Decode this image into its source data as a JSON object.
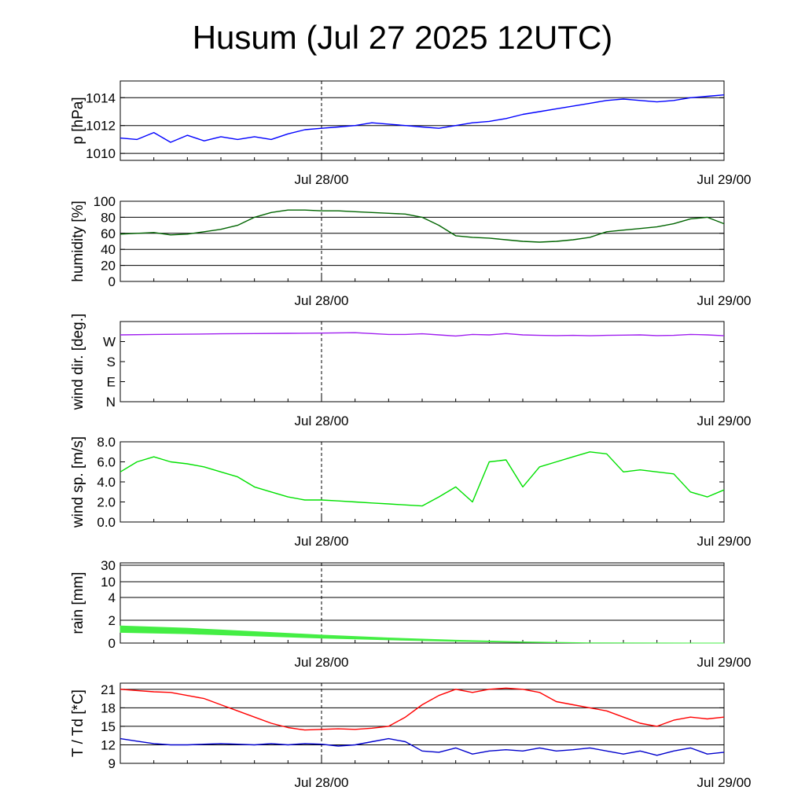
{
  "title": "Husum (Jul 27 2025 12UTC)",
  "chart_data": [
    {
      "id": "pressure",
      "type": "line",
      "ylabel": "p [hPa]",
      "x": [
        "Jul 27 12UTC",
        "Jul 29/00"
      ],
      "xticks": [
        "Jul 28/00",
        "Jul 29/00"
      ],
      "ylim": [
        1009.5,
        1015.2
      ],
      "yticks": [
        "1010",
        "1012",
        "1014"
      ],
      "grid": true,
      "series": [
        {
          "color": "#0000ff",
          "values": [
            [
              0,
              1011.1
            ],
            [
              1,
              1011.0
            ],
            [
              2,
              1011.5
            ],
            [
              3,
              1010.8
            ],
            [
              4,
              1011.3
            ],
            [
              5,
              1010.9
            ],
            [
              6,
              1011.2
            ],
            [
              7,
              1011.0
            ],
            [
              8,
              1011.2
            ],
            [
              9,
              1011.0
            ],
            [
              10,
              1011.4
            ],
            [
              11,
              1011.7
            ],
            [
              12,
              1011.8
            ],
            [
              13,
              1011.9
            ],
            [
              14,
              1012.0
            ],
            [
              15,
              1012.2
            ],
            [
              16,
              1012.1
            ],
            [
              17,
              1012.0
            ],
            [
              18,
              1011.9
            ],
            [
              19,
              1011.8
            ],
            [
              20,
              1012.0
            ],
            [
              21,
              1012.2
            ],
            [
              22,
              1012.3
            ],
            [
              23,
              1012.5
            ],
            [
              24,
              1012.8
            ],
            [
              25,
              1013.0
            ],
            [
              26,
              1013.2
            ],
            [
              27,
              1013.4
            ],
            [
              28,
              1013.6
            ],
            [
              29,
              1013.8
            ],
            [
              30,
              1013.9
            ],
            [
              31,
              1013.8
            ],
            [
              32,
              1013.7
            ],
            [
              33,
              1013.8
            ],
            [
              34,
              1014.0
            ],
            [
              35,
              1014.1
            ],
            [
              36,
              1014.2
            ]
          ]
        }
      ]
    },
    {
      "id": "humidity",
      "type": "line",
      "ylabel": "humidity [%]",
      "xticks": [
        "Jul 28/00",
        "Jul 29/00"
      ],
      "ylim": [
        0,
        100
      ],
      "yticks": [
        "0",
        "20",
        "40",
        "60",
        "80",
        "100"
      ],
      "grid": true,
      "series": [
        {
          "color": "#006400",
          "values": [
            [
              0,
              59
            ],
            [
              1,
              60
            ],
            [
              2,
              61
            ],
            [
              3,
              58
            ],
            [
              4,
              59
            ],
            [
              5,
              62
            ],
            [
              6,
              65
            ],
            [
              7,
              70
            ],
            [
              8,
              80
            ],
            [
              9,
              86
            ],
            [
              10,
              89
            ],
            [
              11,
              89
            ],
            [
              12,
              88
            ],
            [
              13,
              88
            ],
            [
              14,
              87
            ],
            [
              15,
              86
            ],
            [
              16,
              85
            ],
            [
              17,
              84
            ],
            [
              18,
              80
            ],
            [
              19,
              70
            ],
            [
              20,
              57
            ],
            [
              21,
              55
            ],
            [
              22,
              54
            ],
            [
              23,
              52
            ],
            [
              24,
              50
            ],
            [
              25,
              49
            ],
            [
              26,
              50
            ],
            [
              27,
              52
            ],
            [
              28,
              55
            ],
            [
              29,
              62
            ],
            [
              30,
              64
            ],
            [
              31,
              66
            ],
            [
              32,
              68
            ],
            [
              33,
              72
            ],
            [
              34,
              78
            ],
            [
              35,
              80
            ],
            [
              36,
              72
            ]
          ]
        }
      ]
    },
    {
      "id": "winddir",
      "type": "line",
      "ylabel": "wind dir. [deg.]",
      "xticks": [
        "Jul 28/00",
        "Jul 29/00"
      ],
      "ylim": [
        0,
        360
      ],
      "yticks": [
        "N",
        "E",
        "S",
        "W"
      ],
      "grid": false,
      "series": [
        {
          "color": "#a020f0",
          "values": [
            [
              0,
              300
            ],
            [
              2,
              302
            ],
            [
              4,
              303
            ],
            [
              6,
              305
            ],
            [
              8,
              306
            ],
            [
              10,
              307
            ],
            [
              12,
              308
            ],
            [
              14,
              310
            ],
            [
              15,
              306
            ],
            [
              16,
              302
            ],
            [
              17,
              302
            ],
            [
              18,
              305
            ],
            [
              19,
              300
            ],
            [
              20,
              295
            ],
            [
              21,
              302
            ],
            [
              22,
              300
            ],
            [
              23,
              306
            ],
            [
              24,
              300
            ],
            [
              25,
              298
            ],
            [
              26,
              297
            ],
            [
              27,
              298
            ],
            [
              28,
              296
            ],
            [
              29,
              298
            ],
            [
              30,
              299
            ],
            [
              31,
              300
            ],
            [
              32,
              297
            ],
            [
              33,
              298
            ],
            [
              34,
              302
            ],
            [
              35,
              300
            ],
            [
              36,
              296
            ]
          ]
        }
      ]
    },
    {
      "id": "windspeed",
      "type": "line",
      "ylabel": "wind sp. [m/s]",
      "xticks": [
        "Jul 28/00",
        "Jul 29/00"
      ],
      "ylim": [
        0,
        8
      ],
      "yticks": [
        "0.0",
        "2.0",
        "4.0",
        "6.0",
        "8.0"
      ],
      "grid": false,
      "series": [
        {
          "color": "#00e000",
          "values": [
            [
              0,
              5.0
            ],
            [
              1,
              6.0
            ],
            [
              2,
              6.5
            ],
            [
              3,
              6.0
            ],
            [
              4,
              5.8
            ],
            [
              5,
              5.5
            ],
            [
              6,
              5.0
            ],
            [
              7,
              4.5
            ],
            [
              8,
              3.5
            ],
            [
              9,
              3.0
            ],
            [
              10,
              2.5
            ],
            [
              11,
              2.2
            ],
            [
              12,
              2.2
            ],
            [
              13,
              2.1
            ],
            [
              14,
              2.0
            ],
            [
              15,
              1.9
            ],
            [
              16,
              1.8
            ],
            [
              17,
              1.7
            ],
            [
              18,
              1.6
            ],
            [
              19,
              2.5
            ],
            [
              20,
              3.5
            ],
            [
              21,
              2.0
            ],
            [
              22,
              6.0
            ],
            [
              23,
              6.2
            ],
            [
              24,
              3.5
            ],
            [
              25,
              5.5
            ],
            [
              26,
              6.0
            ],
            [
              27,
              6.5
            ],
            [
              28,
              7.0
            ],
            [
              29,
              6.8
            ],
            [
              30,
              5.0
            ],
            [
              31,
              5.2
            ],
            [
              32,
              5.0
            ],
            [
              33,
              4.8
            ],
            [
              34,
              3.0
            ],
            [
              35,
              2.5
            ],
            [
              36,
              3.2
            ]
          ]
        }
      ]
    },
    {
      "id": "rain",
      "type": "area",
      "ylabel": "rain [mm]",
      "xticks": [
        "Jul 28/00",
        "Jul 29/00"
      ],
      "yticks": [
        "0",
        "2",
        "4",
        "10",
        "30"
      ],
      "grid": true,
      "series": [
        {
          "color": "#44ee44",
          "values": [
            [
              0,
              1.5
            ],
            [
              4,
              1.3
            ],
            [
              8,
              1.0
            ],
            [
              12,
              0.7
            ],
            [
              16,
              0.45
            ],
            [
              20,
              0.25
            ],
            [
              24,
              0.1
            ],
            [
              28,
              0.02
            ],
            [
              36,
              0.0
            ]
          ]
        }
      ]
    },
    {
      "id": "temperature",
      "type": "line",
      "ylabel": "T / Td [*C]",
      "xticks": [
        "Jul 28/00",
        "Jul 29/00"
      ],
      "ylim": [
        9,
        22
      ],
      "yticks": [
        "9",
        "12",
        "15",
        "18",
        "21"
      ],
      "grid": true,
      "series": [
        {
          "color": "#ff0000",
          "values": [
            [
              0,
              21.0
            ],
            [
              1,
              20.8
            ],
            [
              2,
              20.6
            ],
            [
              3,
              20.5
            ],
            [
              4,
              20.0
            ],
            [
              5,
              19.5
            ],
            [
              6,
              18.5
            ],
            [
              7,
              17.5
            ],
            [
              8,
              16.5
            ],
            [
              9,
              15.5
            ],
            [
              10,
              14.8
            ],
            [
              11,
              14.4
            ],
            [
              12,
              14.5
            ],
            [
              13,
              14.6
            ],
            [
              14,
              14.5
            ],
            [
              15,
              14.7
            ],
            [
              16,
              15.0
            ],
            [
              17,
              16.5
            ],
            [
              18,
              18.5
            ],
            [
              19,
              20.0
            ],
            [
              20,
              21.0
            ],
            [
              21,
              20.5
            ],
            [
              22,
              21.0
            ],
            [
              23,
              21.2
            ],
            [
              24,
              21.0
            ],
            [
              25,
              20.5
            ],
            [
              26,
              19.0
            ],
            [
              27,
              18.5
            ],
            [
              28,
              18.0
            ],
            [
              29,
              17.5
            ],
            [
              30,
              16.5
            ],
            [
              31,
              15.5
            ],
            [
              32,
              15.0
            ],
            [
              33,
              16.0
            ],
            [
              34,
              16.5
            ],
            [
              35,
              16.2
            ],
            [
              36,
              16.5
            ]
          ]
        },
        {
          "color": "#0000cc",
          "values": [
            [
              0,
              13.0
            ],
            [
              1,
              12.6
            ],
            [
              2,
              12.2
            ],
            [
              3,
              12.0
            ],
            [
              4,
              12.0
            ],
            [
              5,
              12.1
            ],
            [
              6,
              12.2
            ],
            [
              7,
              12.1
            ],
            [
              8,
              12.0
            ],
            [
              9,
              12.2
            ],
            [
              10,
              12.0
            ],
            [
              11,
              12.2
            ],
            [
              12,
              12.1
            ],
            [
              13,
              11.8
            ],
            [
              14,
              12.0
            ],
            [
              15,
              12.5
            ],
            [
              16,
              13.0
            ],
            [
              17,
              12.5
            ],
            [
              18,
              11.0
            ],
            [
              19,
              10.8
            ],
            [
              20,
              11.5
            ],
            [
              21,
              10.5
            ],
            [
              22,
              11.0
            ],
            [
              23,
              11.2
            ],
            [
              24,
              11.0
            ],
            [
              25,
              11.5
            ],
            [
              26,
              11.0
            ],
            [
              27,
              11.2
            ],
            [
              28,
              11.5
            ],
            [
              29,
              11.0
            ],
            [
              30,
              10.5
            ],
            [
              31,
              11.0
            ],
            [
              32,
              10.3
            ],
            [
              33,
              11.0
            ],
            [
              34,
              11.5
            ],
            [
              35,
              10.5
            ],
            [
              36,
              10.8
            ]
          ]
        }
      ]
    }
  ]
}
